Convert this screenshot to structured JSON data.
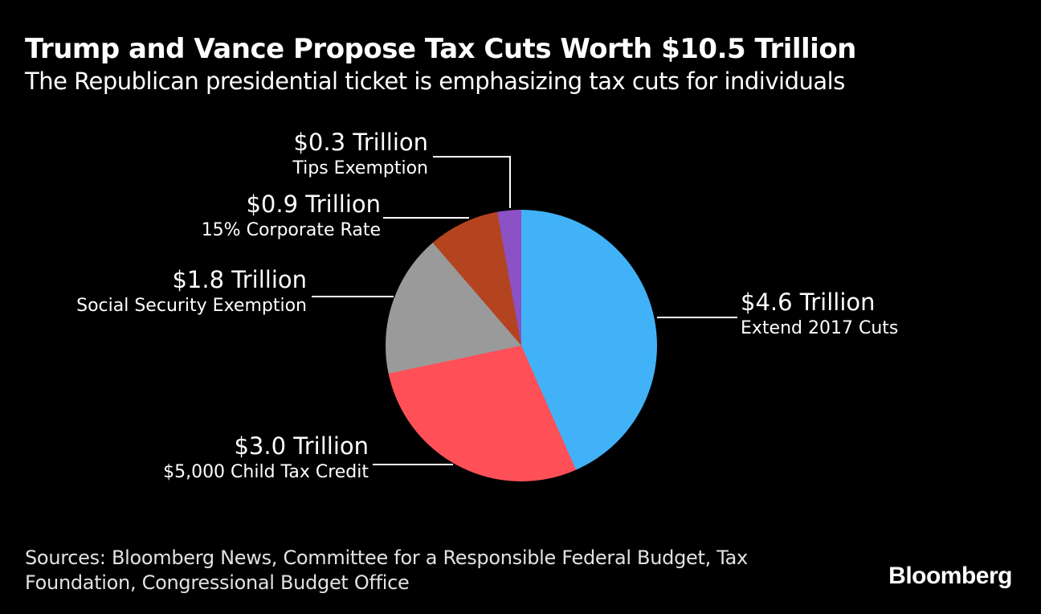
{
  "header": {
    "title": "Trump and Vance Propose Tax Cuts Worth $10.5 Trillion",
    "subtitle": "The Republican presidential ticket is emphasizing tax cuts for individuals"
  },
  "chart_data": {
    "type": "pie",
    "title": "Trump and Vance Propose Tax Cuts Worth $10.5 Trillion",
    "subtitle": "The Republican presidential ticket is emphasizing tax cuts for individuals",
    "unit": "Trillion USD",
    "total_label": "$10.5 Trillion",
    "start_angle_deg": 0,
    "direction": "clockwise",
    "legend_position": "callout-labels",
    "slices": [
      {
        "label": "Extend 2017 Cuts",
        "value_label": "$4.6 Trillion",
        "value": 4.6,
        "color": "#41B2F7"
      },
      {
        "label": "$5,000 Child Tax Credit",
        "value_label": "$3.0 Trillion",
        "value": 3.0,
        "color": "#FF5058"
      },
      {
        "label": "Social Security Exemption",
        "value_label": "$1.8 Trillion",
        "value": 1.8,
        "color": "#9A9A9A"
      },
      {
        "label": "15% Corporate Rate",
        "value_label": "$0.9 Trillion",
        "value": 0.9,
        "color": "#B4431F"
      },
      {
        "label": "Tips Exemption",
        "value_label": "$0.3 Trillion",
        "value": 0.3,
        "color": "#8B51C5"
      }
    ]
  },
  "footer": {
    "sources": "Sources: Bloomberg News, Committee for a Responsible Federal Budget, Tax Foundation, Congressional Budget Office",
    "brand": "Bloomberg"
  },
  "colors": {
    "background": "#000000",
    "text": "#FFFFFF",
    "leader_line": "#FFFFFF",
    "sources_text": "#E2E2E2"
  }
}
